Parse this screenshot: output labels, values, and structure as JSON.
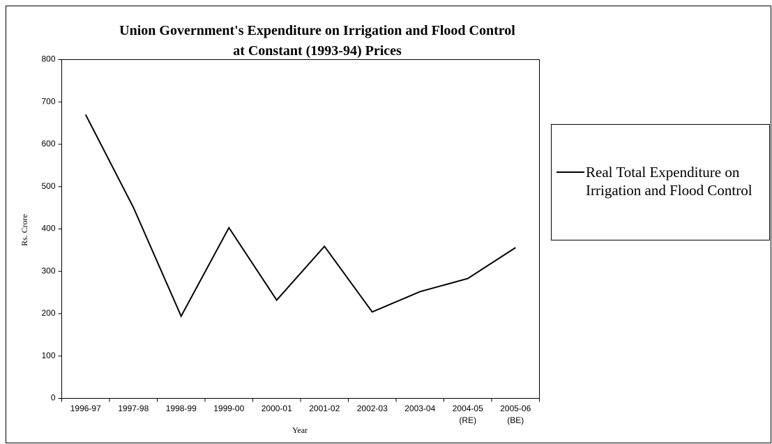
{
  "chart_data": {
    "type": "line",
    "title": "Union Government's Expenditure on Irrigation and Flood Control\nat Constant (1993-94) Prices",
    "x_label": "Year",
    "y_label": "Rs. Crore",
    "categories": [
      "1996-97",
      "1997-98",
      "1998-99",
      "1999-00",
      "2000-01",
      "2001-02",
      "2002-03",
      "2003-04",
      "2004-05\n(RE)",
      "2005-06\n(BE)"
    ],
    "series": [
      {
        "name": "Real Total Expenditure on Irrigation and Flood Control",
        "color": "#000000",
        "values": [
          670,
          451,
          194,
          403,
          232,
          359,
          204,
          252,
          283,
          356
        ]
      }
    ],
    "ylim": [
      0,
      800
    ],
    "yticks": [
      0,
      100,
      200,
      300,
      400,
      500,
      600,
      700,
      800
    ],
    "grid": false,
    "legend": "right"
  }
}
